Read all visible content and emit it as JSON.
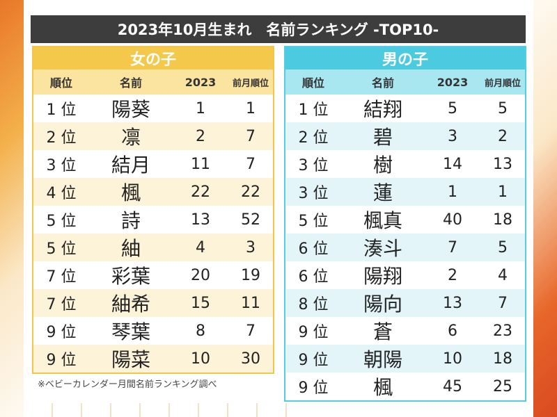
{
  "title": "2023年10月生まれ　名前ランキング -TOP10-",
  "columns": {
    "rank": "順位",
    "name": "名前",
    "year": "2023",
    "prev": "前月順位"
  },
  "girls": {
    "label": "女の子",
    "rows": [
      {
        "rank": "1 位",
        "name": "陽葵",
        "year": "1",
        "prev": "1"
      },
      {
        "rank": "2 位",
        "name": "凛",
        "year": "2",
        "prev": "7"
      },
      {
        "rank": "3 位",
        "name": "結月",
        "year": "11",
        "prev": "7"
      },
      {
        "rank": "4 位",
        "name": "楓",
        "year": "22",
        "prev": "22"
      },
      {
        "rank": "5 位",
        "name": "詩",
        "year": "13",
        "prev": "52"
      },
      {
        "rank": "5 位",
        "name": "紬",
        "year": "4",
        "prev": "3"
      },
      {
        "rank": "7 位",
        "name": "彩葉",
        "year": "20",
        "prev": "19"
      },
      {
        "rank": "7 位",
        "name": "紬希",
        "year": "15",
        "prev": "11"
      },
      {
        "rank": "9 位",
        "name": "琴葉",
        "year": "8",
        "prev": "7"
      },
      {
        "rank": "9 位",
        "name": "陽菜",
        "year": "10",
        "prev": "30"
      }
    ]
  },
  "boys": {
    "label": "男の子",
    "rows": [
      {
        "rank": "1 位",
        "name": "結翔",
        "year": "5",
        "prev": "5"
      },
      {
        "rank": "2 位",
        "name": "碧",
        "year": "3",
        "prev": "2"
      },
      {
        "rank": "3 位",
        "name": "樹",
        "year": "14",
        "prev": "13"
      },
      {
        "rank": "3 位",
        "name": "蓮",
        "year": "1",
        "prev": "1"
      },
      {
        "rank": "5 位",
        "name": "楓真",
        "year": "40",
        "prev": "18"
      },
      {
        "rank": "6 位",
        "name": "湊斗",
        "year": "7",
        "prev": "5"
      },
      {
        "rank": "6 位",
        "name": "陽翔",
        "year": "2",
        "prev": "4"
      },
      {
        "rank": "8 位",
        "name": "陽向",
        "year": "13",
        "prev": "7"
      },
      {
        "rank": "9 位",
        "name": "蒼",
        "year": "6",
        "prev": "23"
      },
      {
        "rank": "9 位",
        "name": "朝陽",
        "year": "10",
        "prev": "18"
      },
      {
        "rank": "9 位",
        "name": "楓",
        "year": "45",
        "prev": "25"
      }
    ]
  },
  "note": "※ベビーカレンダー月間名前ランキング調べ",
  "colors": {
    "girls": "#f4c84b",
    "boys": "#4ccbe0",
    "title_bg": "#3d3d3d"
  }
}
